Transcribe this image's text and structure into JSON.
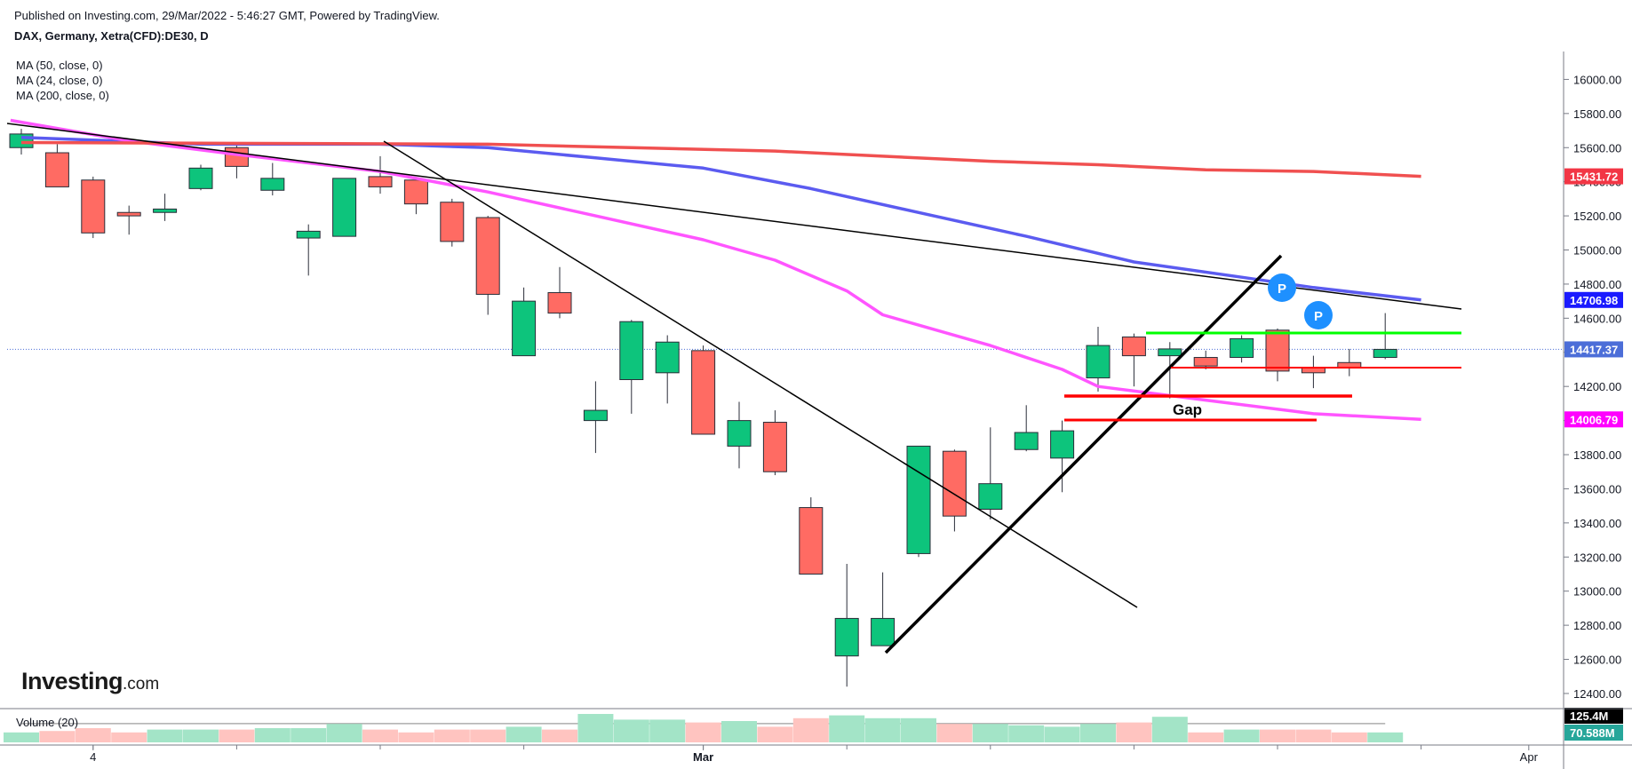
{
  "header": {
    "published": "Published on Investing.com, 29/Mar/2022 - 5:46:27 GMT, Powered by TradingView.",
    "symbol": "DAX, Germany, Xetra(CFD):DE30, D"
  },
  "legend": {
    "ma": [
      "MA (50, close, 0)",
      "MA (24, close, 0)",
      "MA (200, close, 0)"
    ],
    "volume": "Volume (20)"
  },
  "logo": {
    "brand": "Investing",
    "suffix": ".com"
  },
  "annotations": {
    "gap": "Gap",
    "pivot_label": "P"
  },
  "chart_data": {
    "type": "candlestick",
    "title": "DAX, Germany, Xetra(CFD):DE30, D",
    "ylim": [
      12280,
      16200
    ],
    "y_ticks": [
      "16000.00",
      "15800.00",
      "15600.00",
      "15400.00",
      "15200.00",
      "15000.00",
      "14800.00",
      "14600.00",
      "14400.00",
      "14200.00",
      "14000.00",
      "13800.00",
      "13600.00",
      "13400.00",
      "13200.00",
      "13000.00",
      "12800.00",
      "12600.00",
      "12400.00"
    ],
    "x_ticks": [
      {
        "label": "4",
        "index": 2
      },
      {
        "label": "Mar",
        "index": 19
      },
      {
        "label": "Apr",
        "index": 42
      }
    ],
    "candles": [
      {
        "o": 15600,
        "h": 15710,
        "l": 15560,
        "c": 15680
      },
      {
        "o": 15570,
        "h": 15620,
        "l": 15370,
        "c": 15370
      },
      {
        "o": 15410,
        "h": 15430,
        "l": 15070,
        "c": 15100
      },
      {
        "o": 15220,
        "h": 15260,
        "l": 15090,
        "c": 15200
      },
      {
        "o": 15220,
        "h": 15330,
        "l": 15170,
        "c": 15240
      },
      {
        "o": 15360,
        "h": 15500,
        "l": 15350,
        "c": 15480
      },
      {
        "o": 15600,
        "h": 15620,
        "l": 15420,
        "c": 15490
      },
      {
        "o": 15350,
        "h": 15510,
        "l": 15320,
        "c": 15420
      },
      {
        "o": 15070,
        "h": 15150,
        "l": 14850,
        "c": 15110
      },
      {
        "o": 15080,
        "h": 15420,
        "l": 15080,
        "c": 15420
      },
      {
        "o": 15430,
        "h": 15550,
        "l": 15330,
        "c": 15370
      },
      {
        "o": 15410,
        "h": 15420,
        "l": 15210,
        "c": 15270
      },
      {
        "o": 15280,
        "h": 15300,
        "l": 15020,
        "c": 15050
      },
      {
        "o": 15190,
        "h": 15200,
        "l": 14620,
        "c": 14740
      },
      {
        "o": 14380,
        "h": 14780,
        "l": 14380,
        "c": 14700
      },
      {
        "o": 14750,
        "h": 14900,
        "l": 14600,
        "c": 14630
      },
      {
        "o": 14000,
        "h": 14230,
        "l": 13810,
        "c": 14060
      },
      {
        "o": 14240,
        "h": 14590,
        "l": 14040,
        "c": 14580
      },
      {
        "o": 14280,
        "h": 14500,
        "l": 14100,
        "c": 14460
      },
      {
        "o": 14410,
        "h": 14440,
        "l": 13920,
        "c": 13920
      },
      {
        "o": 13850,
        "h": 14110,
        "l": 13720,
        "c": 14000
      },
      {
        "o": 13990,
        "h": 14060,
        "l": 13680,
        "c": 13700
      },
      {
        "o": 13490,
        "h": 13550,
        "l": 13100,
        "c": 13100
      },
      {
        "o": 12620,
        "h": 13160,
        "l": 12440,
        "c": 12840
      },
      {
        "o": 12680,
        "h": 13110,
        "l": 12680,
        "c": 12840
      },
      {
        "o": 13220,
        "h": 13850,
        "l": 13200,
        "c": 13850
      },
      {
        "o": 13820,
        "h": 13830,
        "l": 13350,
        "c": 13440
      },
      {
        "o": 13480,
        "h": 13960,
        "l": 13420,
        "c": 13630
      },
      {
        "o": 13830,
        "h": 14090,
        "l": 13820,
        "c": 13930
      },
      {
        "o": 13780,
        "h": 14000,
        "l": 13580,
        "c": 13940
      },
      {
        "o": 14250,
        "h": 14550,
        "l": 14170,
        "c": 14440
      },
      {
        "o": 14490,
        "h": 14510,
        "l": 14200,
        "c": 14380
      },
      {
        "o": 14380,
        "h": 14460,
        "l": 14130,
        "c": 14420
      },
      {
        "o": 14370,
        "h": 14410,
        "l": 14300,
        "c": 14320
      },
      {
        "o": 14370,
        "h": 14500,
        "l": 14340,
        "c": 14480
      },
      {
        "o": 14530,
        "h": 14540,
        "l": 14230,
        "c": 14290
      },
      {
        "o": 14310,
        "h": 14380,
        "l": 14190,
        "c": 14280
      },
      {
        "o": 14340,
        "h": 14420,
        "l": 14260,
        "c": 14310
      },
      {
        "o": 14370,
        "h": 14630,
        "l": 14360,
        "c": 14417.37
      }
    ],
    "moving_averages": [
      {
        "name": "MA (50, close, 0)",
        "color": "#5b5bf0",
        "last": 14706.98,
        "points": [
          [
            0,
            15660
          ],
          [
            5,
            15620
          ],
          [
            10,
            15620
          ],
          [
            13,
            15600
          ],
          [
            16,
            15540
          ],
          [
            19,
            15480
          ],
          [
            22,
            15360
          ],
          [
            25,
            15220
          ],
          [
            28,
            15080
          ],
          [
            31,
            14930
          ],
          [
            34,
            14840
          ],
          [
            36,
            14780
          ],
          [
            39,
            14706.98
          ]
        ]
      },
      {
        "name": "MA (24, close, 0)",
        "color": "#ff55ff",
        "last": 14006.79,
        "points": [
          [
            -0.3,
            15760
          ],
          [
            3,
            15640
          ],
          [
            6,
            15560
          ],
          [
            10,
            15460
          ],
          [
            13,
            15340
          ],
          [
            16,
            15200
          ],
          [
            19,
            15060
          ],
          [
            21,
            14940
          ],
          [
            23,
            14760
          ],
          [
            24,
            14620
          ],
          [
            27,
            14440
          ],
          [
            29,
            14300
          ],
          [
            30,
            14200
          ],
          [
            33,
            14120
          ],
          [
            36,
            14040
          ],
          [
            39,
            14006.79
          ]
        ]
      },
      {
        "name": "MA (200, close, 0)",
        "color": "#f05050",
        "last": 15431.72,
        "points": [
          [
            0,
            15630
          ],
          [
            13,
            15620
          ],
          [
            17,
            15600
          ],
          [
            21,
            15580
          ],
          [
            24,
            15550
          ],
          [
            27,
            15520
          ],
          [
            30,
            15500
          ],
          [
            33,
            15470
          ],
          [
            36,
            15460
          ],
          [
            39,
            15431.72
          ]
        ]
      }
    ],
    "price_labels": [
      {
        "value": 15431.72,
        "label": "15431.72",
        "color": "#f23645"
      },
      {
        "value": 14706.98,
        "label": "14706.98",
        "color": "#1a1aff"
      },
      {
        "value": 14417.37,
        "label": "14417.37",
        "color": "#4c6ed8"
      },
      {
        "value": 14006.79,
        "label": "14006.79",
        "color": "#ff00ff"
      }
    ],
    "volume": {
      "labels": [
        {
          "value": "125.4M",
          "color": "#000000"
        },
        {
          "value": "70.588M",
          "color": "#26a69a"
        }
      ],
      "bars": [
        0.35,
        0.4,
        0.5,
        0.35,
        0.45,
        0.45,
        0.45,
        0.5,
        0.5,
        0.65,
        0.45,
        0.35,
        0.45,
        0.45,
        0.55,
        0.45,
        1.0,
        0.8,
        0.8,
        0.7,
        0.75,
        0.55,
        0.85,
        0.95,
        0.85,
        0.85,
        0.65,
        0.65,
        0.6,
        0.55,
        0.65,
        0.7,
        0.9,
        0.35,
        0.45,
        0.45,
        0.45,
        0.35,
        0.35
      ]
    }
  }
}
